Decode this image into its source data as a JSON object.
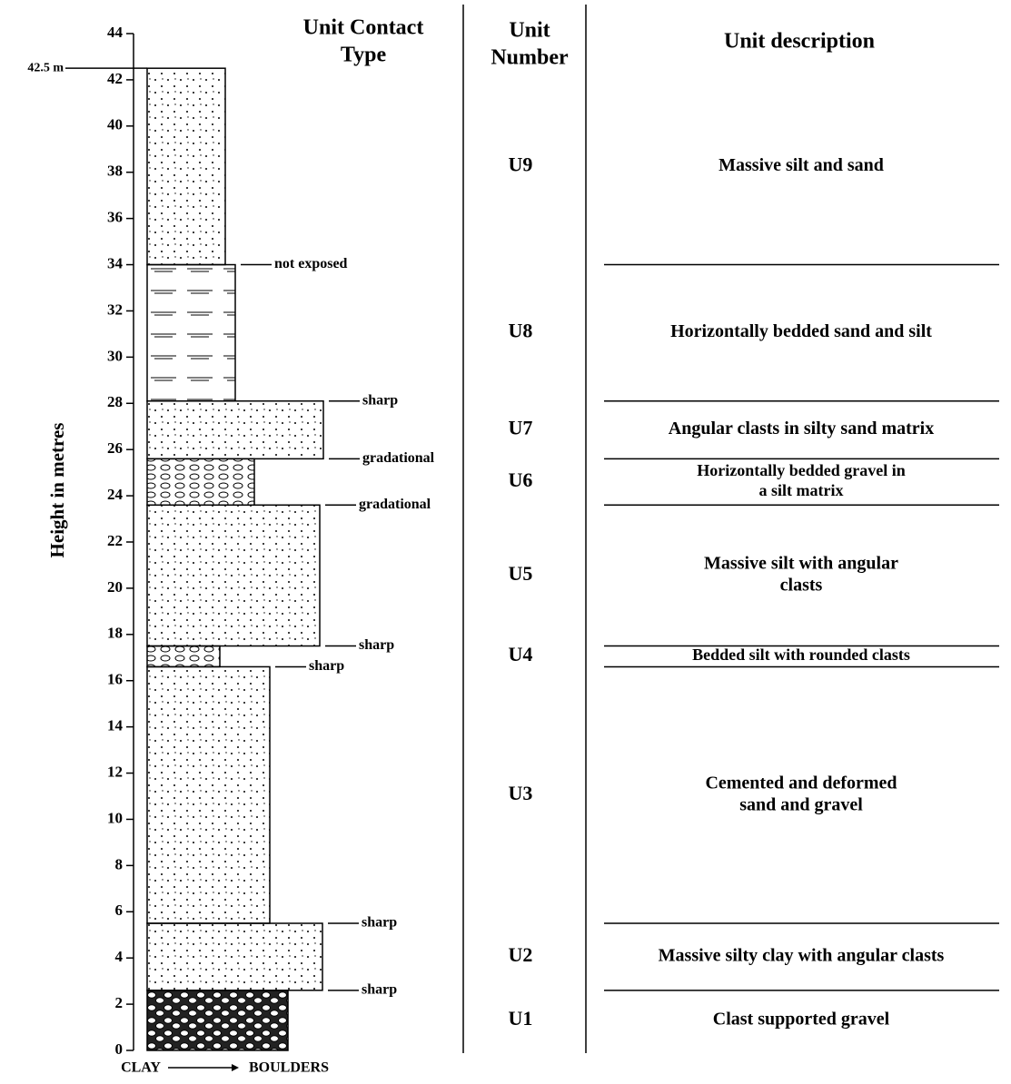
{
  "axis": {
    "label": "Height in metres",
    "ticks": [
      0,
      2,
      4,
      6,
      8,
      10,
      12,
      14,
      16,
      18,
      20,
      22,
      24,
      26,
      28,
      30,
      32,
      34,
      36,
      38,
      40,
      42,
      44
    ],
    "top_marker": {
      "value": 42.5,
      "label": "42.5 m"
    },
    "scale_left": "CLAY",
    "scale_right": "BOULDERS"
  },
  "headers": {
    "contact": [
      "Unit Contact",
      "Type"
    ],
    "number": [
      "Unit",
      "Number"
    ],
    "description": [
      "Unit description"
    ]
  },
  "units": [
    {
      "number": "U1",
      "description": [
        "Clast supported gravel"
      ],
      "bottom": 0,
      "top": 2.6,
      "contact": "sharp"
    },
    {
      "number": "U2",
      "description": [
        "Massive silty clay with angular clasts"
      ],
      "bottom": 2.6,
      "top": 5.5,
      "contact": "sharp"
    },
    {
      "number": "U3",
      "description": [
        "Cemented and deformed",
        "sand and gravel"
      ],
      "bottom": 5.5,
      "top": 16.6,
      "contact": "sharp"
    },
    {
      "number": "U4",
      "description": [
        "Bedded silt with rounded clasts"
      ],
      "bottom": 16.6,
      "top": 17.5,
      "contact": "sharp"
    },
    {
      "number": "U5",
      "description": [
        "Massive silt with angular",
        "clasts"
      ],
      "bottom": 17.5,
      "top": 23.6,
      "contact": "gradational"
    },
    {
      "number": "U6",
      "description": [
        "Horizontally bedded gravel in",
        "a silt matrix"
      ],
      "bottom": 23.6,
      "top": 25.6,
      "contact": "gradational"
    },
    {
      "number": "U7",
      "description": [
        "Angular clasts in silty sand matrix"
      ],
      "bottom": 25.6,
      "top": 28.1,
      "contact": "sharp"
    },
    {
      "number": "U8",
      "description": [
        "Horizontally bedded sand and silt"
      ],
      "bottom": 28.1,
      "top": 34,
      "contact": "not exposed"
    },
    {
      "number": "U9",
      "description": [
        "Massive silt and sand"
      ],
      "bottom": 34,
      "top": 42.5
    }
  ]
}
